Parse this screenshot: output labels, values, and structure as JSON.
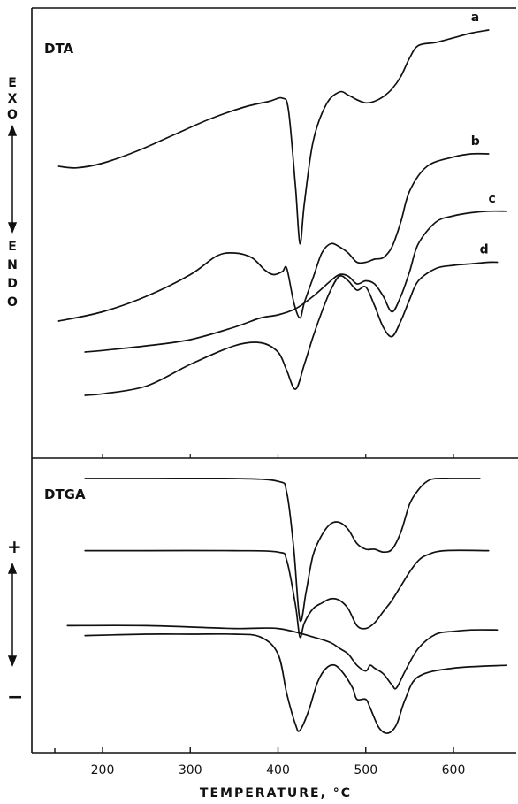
{
  "chart_data": [
    {
      "type": "line",
      "panel_label": "DTA",
      "ylabel_top": "EXO",
      "ylabel_bottom": "ENDO",
      "xlim": [
        130,
        660
      ],
      "series": [
        {
          "name": "a",
          "x": [
            150,
            170,
            200,
            240,
            280,
            320,
            360,
            390,
            405,
            412,
            420,
            425,
            430,
            440,
            455,
            470,
            480,
            490,
            500,
            510,
            520,
            530,
            540,
            550,
            560,
            580,
            600,
            620,
            640
          ],
          "y": [
            52,
            51.5,
            53,
            57,
            62,
            67,
            71,
            73,
            74,
            70,
            45,
            27,
            40,
            60,
            72,
            76,
            75,
            73.5,
            72.5,
            73,
            74.5,
            77,
            81,
            87,
            91,
            92,
            93.5,
            95,
            96
          ]
        },
        {
          "name": "b",
          "x": [
            150,
            200,
            250,
            300,
            330,
            350,
            370,
            385,
            395,
            405,
            410,
            418,
            425,
            430,
            440,
            450,
            460,
            470,
            480,
            490,
            500,
            510,
            520,
            530,
            540,
            550,
            570,
            600,
            620,
            640
          ],
          "y": [
            2,
            5,
            10,
            17,
            23,
            24,
            22.5,
            18.5,
            17,
            18,
            19,
            8,
            3,
            8,
            16,
            24,
            27,
            26,
            24,
            21,
            21,
            22,
            22.5,
            26,
            34,
            44,
            52,
            55,
            56,
            56
          ]
        },
        {
          "name": "c",
          "x": [
            180,
            200,
            250,
            300,
            350,
            380,
            400,
            420,
            440,
            460,
            470,
            480,
            490,
            500,
            510,
            520,
            530,
            540,
            550,
            560,
            580,
            600,
            620,
            640,
            660
          ],
          "y": [
            -8,
            -7.5,
            -6,
            -4,
            0,
            3,
            4,
            6,
            10,
            15,
            17,
            16.5,
            14,
            15,
            14,
            10,
            5,
            10,
            18,
            27,
            34,
            36,
            37,
            37.5,
            37.5
          ]
        },
        {
          "name": "d",
          "x": [
            180,
            200,
            250,
            300,
            350,
            380,
            400,
            410,
            420,
            430,
            440,
            450,
            460,
            470,
            480,
            490,
            500,
            510,
            520,
            530,
            540,
            550,
            560,
            580,
            600,
            620,
            640,
            650
          ],
          "y": [
            -22,
            -21.5,
            -19,
            -12,
            -6,
            -5,
            -8,
            -14,
            -20,
            -12,
            -3,
            5,
            12,
            16.5,
            15,
            12,
            13,
            7,
            0,
            -3,
            2,
            9,
            15,
            19,
            20,
            20.5,
            21,
            21
          ]
        }
      ]
    },
    {
      "type": "line",
      "panel_label": "DTGA",
      "ylabel_top": "+",
      "ylabel_bottom": "−",
      "xlabel": "TEMPERATURE, °C",
      "xlim": [
        130,
        660
      ],
      "xticks": [
        200,
        300,
        400,
        500,
        600
      ],
      "series": [
        {
          "name": "a",
          "x": [
            180,
            250,
            350,
            400,
            410,
            418,
            425,
            432,
            440,
            450,
            460,
            470,
            480,
            490,
            500,
            510,
            520,
            530,
            540,
            550,
            560,
            570,
            580,
            600,
            630
          ],
          "y": [
            95,
            95,
            95,
            94,
            90,
            70,
            45,
            55,
            68,
            75,
            79,
            79.5,
            77,
            72,
            70,
            70,
            69,
            70,
            76,
            86,
            91,
            94,
            95,
            95,
            95
          ]
        },
        {
          "name": "b",
          "x": [
            180,
            250,
            350,
            400,
            410,
            420,
            425,
            430,
            440,
            450,
            460,
            470,
            480,
            490,
            500,
            510,
            520,
            530,
            540,
            550,
            560,
            570,
            590,
            640
          ],
          "y": [
            69.5,
            69.5,
            69.5,
            69,
            66,
            50,
            39,
            44,
            49,
            51,
            52.5,
            52,
            49,
            43,
            42,
            44,
            48,
            52,
            57,
            62,
            66,
            68,
            69.5,
            69.5
          ]
        },
        {
          "name": "c",
          "x": [
            160,
            250,
            350,
            400,
            440,
            460,
            470,
            480,
            490,
            500,
            505,
            510,
            520,
            530,
            535,
            545,
            560,
            580,
            600,
            620,
            650
          ],
          "y": [
            43,
            43,
            42,
            42,
            39,
            37,
            35,
            33,
            29,
            27,
            29,
            28,
            26,
            22,
            21,
            27,
            35,
            40,
            41,
            41.5,
            41.5
          ]
        },
        {
          "name": "d",
          "x": [
            180,
            250,
            300,
            350,
            380,
            400,
            410,
            420,
            425,
            435,
            445,
            455,
            465,
            475,
            485,
            490,
            500,
            505,
            515,
            525,
            535,
            545,
            560,
            600,
            660
          ],
          "y": [
            39.5,
            40,
            40,
            40,
            39,
            33,
            19,
            8,
            6,
            13,
            23,
            28,
            29,
            26,
            21,
            17,
            17,
            14,
            7,
            5,
            8,
            17,
            25,
            28,
            29
          ]
        }
      ]
    }
  ]
}
